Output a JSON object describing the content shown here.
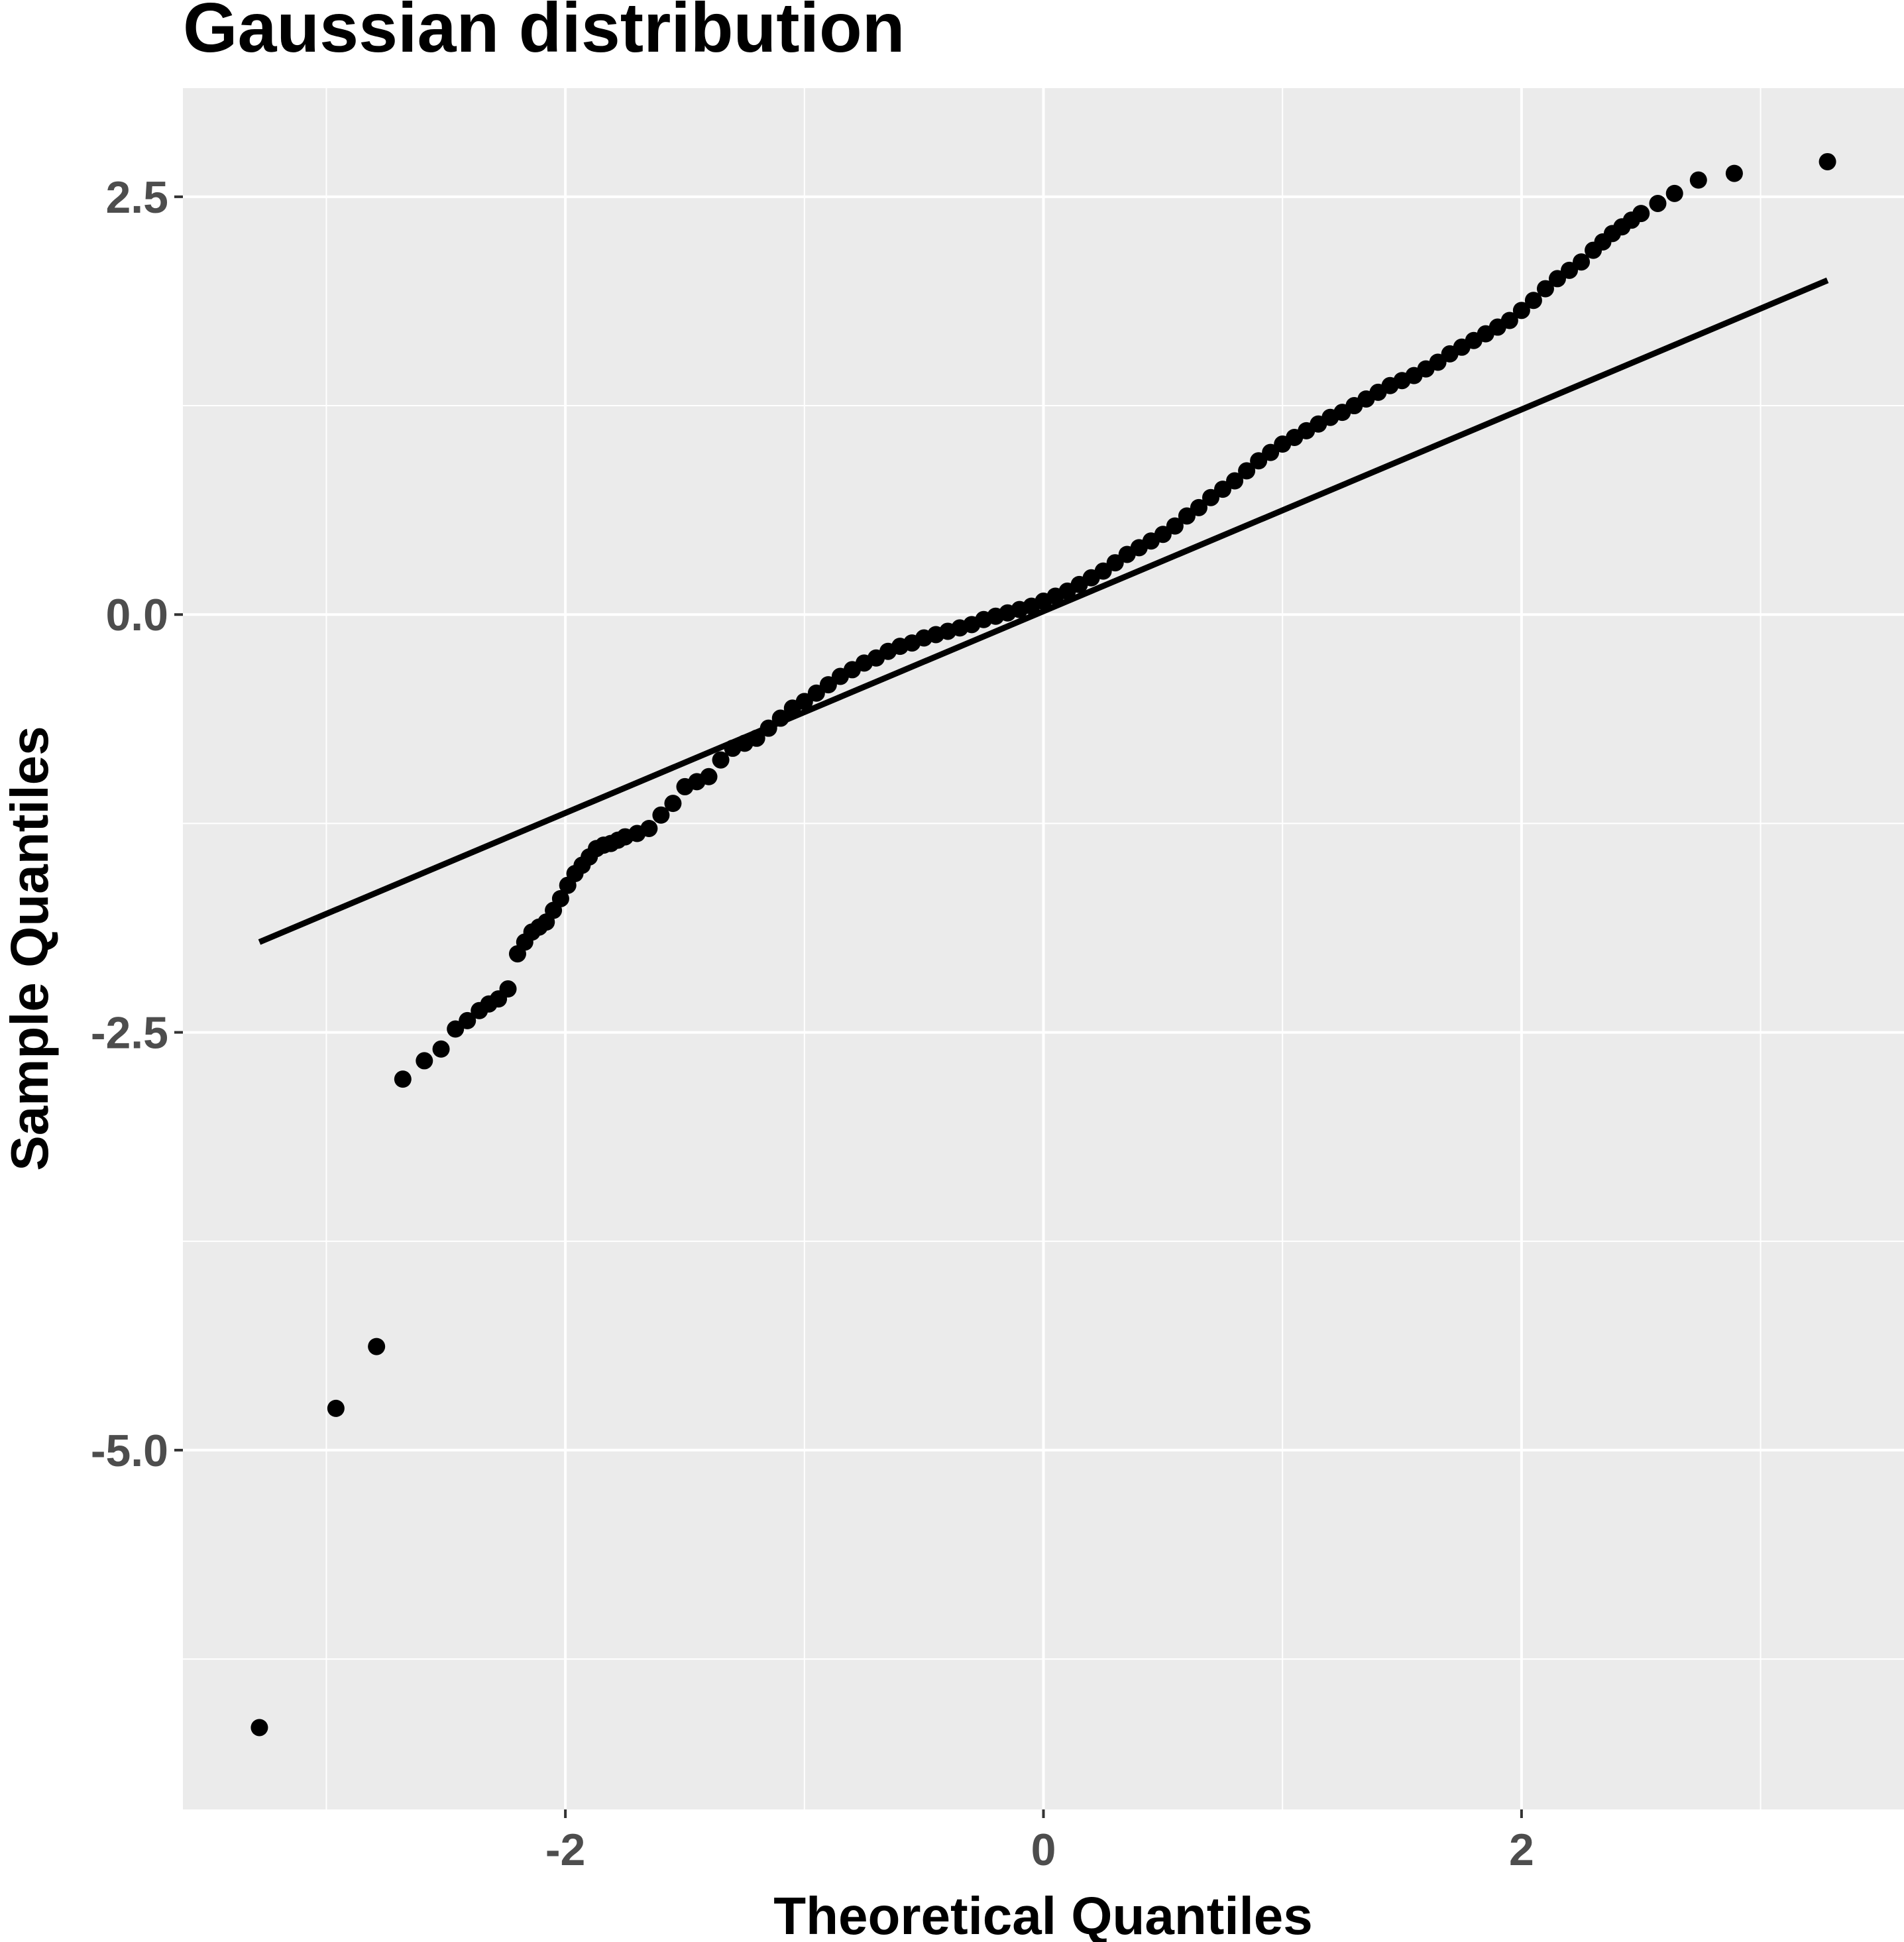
{
  "chart_data": {
    "type": "scatter",
    "title": "Gaussian distribution",
    "xlabel": "Theoretical Quantiles",
    "ylabel": "Sample Quantiles",
    "xlim": [
      -3.6,
      3.6
    ],
    "ylim": [
      -7.15,
      3.15
    ],
    "x_ticks": [
      -2,
      0,
      2
    ],
    "x_tick_labels": [
      "-2",
      "0",
      "2"
    ],
    "y_ticks": [
      -5.0,
      -2.5,
      0.0,
      2.5
    ],
    "y_tick_labels": [
      "-5.0",
      "-2.5",
      "0.0",
      "2.5"
    ],
    "grid": true,
    "panel_background": "#ebebeb",
    "grid_color": "#ffffff",
    "point_color": "#000000",
    "line_color": "#000000",
    "reference_line": {
      "x": [
        -3.28,
        3.28
      ],
      "y": [
        -1.96,
        2.0
      ]
    },
    "series": [
      {
        "x": [
          -3.28,
          -2.96,
          -2.79,
          -2.68,
          -2.59,
          -2.52,
          -2.46,
          -2.41,
          -2.36,
          -2.32,
          -2.28,
          -2.24,
          -2.2,
          -2.17,
          -2.14,
          -2.11,
          -2.08,
          -2.05,
          -2.02,
          -1.99,
          -1.96,
          -1.93,
          -1.9,
          -1.87,
          -1.84,
          -1.81,
          -1.78,
          -1.75,
          -1.7,
          -1.65,
          -1.6,
          -1.55,
          -1.5,
          -1.45,
          -1.4,
          -1.35,
          -1.3,
          -1.25,
          -1.2,
          -1.15,
          -1.1,
          -1.05,
          -1.0,
          -0.95,
          -0.9,
          -0.85,
          -0.8,
          -0.75,
          -0.7,
          -0.65,
          -0.6,
          -0.55,
          -0.5,
          -0.45,
          -0.4,
          -0.35,
          -0.3,
          -0.25,
          -0.2,
          -0.15,
          -0.1,
          -0.05,
          0.0,
          0.05,
          0.1,
          0.15,
          0.2,
          0.25,
          0.3,
          0.35,
          0.4,
          0.45,
          0.5,
          0.55,
          0.6,
          0.65,
          0.7,
          0.75,
          0.8,
          0.85,
          0.9,
          0.95,
          1.0,
          1.05,
          1.1,
          1.15,
          1.2,
          1.25,
          1.3,
          1.35,
          1.4,
          1.45,
          1.5,
          1.55,
          1.6,
          1.65,
          1.7,
          1.75,
          1.8,
          1.85,
          1.9,
          1.95,
          2.0,
          2.05,
          2.1,
          2.15,
          2.2,
          2.25,
          2.3,
          2.34,
          2.38,
          2.42,
          2.46,
          2.5,
          2.57,
          2.64,
          2.74,
          2.89,
          3.28
        ],
        "y": [
          -6.66,
          -4.75,
          -4.38,
          -2.78,
          -2.67,
          -2.6,
          -2.48,
          -2.43,
          -2.37,
          -2.33,
          -2.3,
          -2.24,
          -2.03,
          -1.96,
          -1.9,
          -1.87,
          -1.84,
          -1.77,
          -1.7,
          -1.62,
          -1.55,
          -1.5,
          -1.45,
          -1.4,
          -1.38,
          -1.37,
          -1.35,
          -1.33,
          -1.31,
          -1.28,
          -1.2,
          -1.13,
          -1.03,
          -1.0,
          -0.97,
          -0.87,
          -0.8,
          -0.77,
          -0.74,
          -0.68,
          -0.62,
          -0.56,
          -0.52,
          -0.47,
          -0.42,
          -0.37,
          -0.33,
          -0.29,
          -0.26,
          -0.22,
          -0.19,
          -0.17,
          -0.14,
          -0.12,
          -0.1,
          -0.08,
          -0.06,
          -0.03,
          -0.01,
          0.01,
          0.03,
          0.05,
          0.08,
          0.11,
          0.14,
          0.18,
          0.22,
          0.26,
          0.31,
          0.36,
          0.4,
          0.44,
          0.48,
          0.53,
          0.59,
          0.64,
          0.7,
          0.75,
          0.8,
          0.86,
          0.92,
          0.97,
          1.02,
          1.06,
          1.1,
          1.14,
          1.18,
          1.21,
          1.25,
          1.29,
          1.33,
          1.37,
          1.4,
          1.43,
          1.47,
          1.51,
          1.56,
          1.6,
          1.64,
          1.68,
          1.72,
          1.76,
          1.82,
          1.88,
          1.95,
          2.01,
          2.06,
          2.11,
          2.18,
          2.23,
          2.28,
          2.32,
          2.36,
          2.4,
          2.46,
          2.52,
          2.6,
          2.64,
          2.71
        ]
      }
    ]
  }
}
